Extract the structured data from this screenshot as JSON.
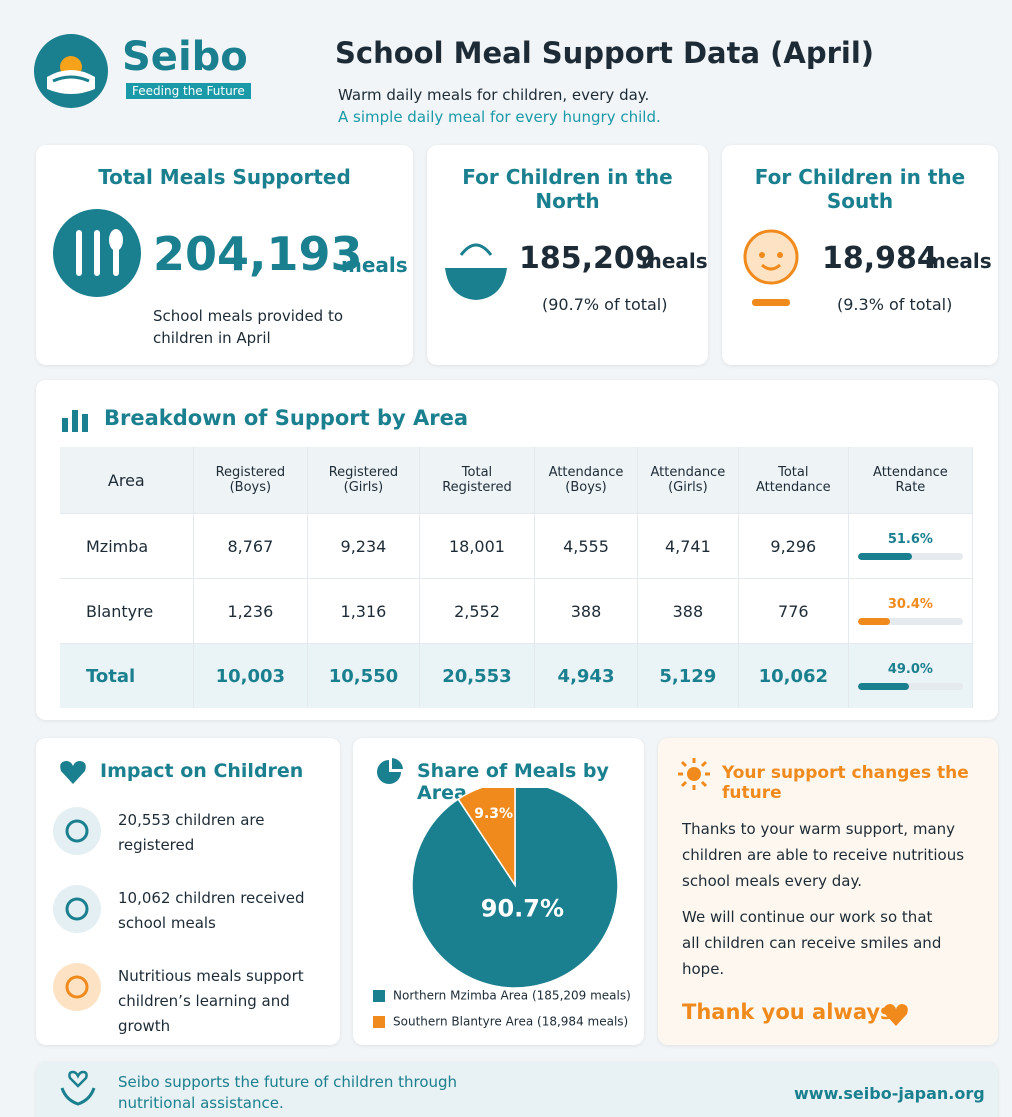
{
  "header": {
    "brand": "Seibo",
    "tagline": "Feeding the Future",
    "title": "School Meal Support Data (April)",
    "subtitle": "Warm daily meals for children, every day.",
    "subtitle2": "A simple daily meal for every hungry child."
  },
  "summary": [
    {
      "title": "Total Meals Supported",
      "value": "204,193",
      "unit": "meals",
      "note": "School meals provided to children in April"
    },
    {
      "title": "For Children in the North",
      "value": "185,209",
      "unit": "meals",
      "note": "(90.7% of total)"
    },
    {
      "title": "For Children in the South",
      "value": "18,984",
      "unit": "meals",
      "note": "(9.3% of total)"
    }
  ],
  "table": {
    "title": "Breakdown of Support by Area",
    "columns": [
      "Area",
      "Registered (Boys)",
      "Registered (Girls)",
      "Total Registered",
      "Attendance (Boys)",
      "Attendance (Girls)",
      "Total Attendance",
      "Attendance Rate"
    ],
    "rows": [
      [
        "Mzimba",
        "8,767",
        "9,234",
        "18,001",
        "4,555",
        "4,741",
        "9,296"
      ],
      [
        "Blantyre",
        "1,236",
        "1,316",
        "2,552",
        "388",
        "388",
        "776"
      ],
      [
        "Total",
        "10,003",
        "10,550",
        "20,553",
        "4,943",
        "5,129",
        "10,062"
      ]
    ],
    "rates": [
      {
        "value": 51.6,
        "label": "51.6%",
        "color": "#1a7f8e"
      },
      {
        "value": 30.4,
        "label": "30.4%",
        "color": "#f08a1c"
      },
      {
        "value": 49.0,
        "label": "49.0%",
        "color": "#1a7f8e"
      }
    ],
    "rate_lim": [
      0,
      100
    ]
  },
  "impact": {
    "title": "Impact on Children",
    "items": [
      "20,553 children are registered",
      "10,062 children received school meals",
      "Nutritious meals support children’s learning and growth"
    ]
  },
  "pie": {
    "type": "pie",
    "title": "Share of Meals by Area",
    "values": [
      90.7,
      9.3
    ],
    "value_labels": [
      "90.7%",
      "9.3%"
    ],
    "colors": [
      "#1a7f8e",
      "#f08a1c"
    ],
    "legend": [
      "Northern Mzimba Area  (185,209 meals)",
      "Southern Blantyre Area  (18,984 meals)"
    ]
  },
  "message": {
    "title": "Your support changes the future",
    "paragraphs": [
      "Thanks to your warm support, many children are able to receive nutritious school meals every day.",
      "We will continue our work so that all children can receive smiles and hope."
    ],
    "closing": "Thank you always."
  },
  "footer": {
    "text": "Seibo supports the future of children through nutritional assistance.",
    "url": "www.seibo-japan.org"
  }
}
